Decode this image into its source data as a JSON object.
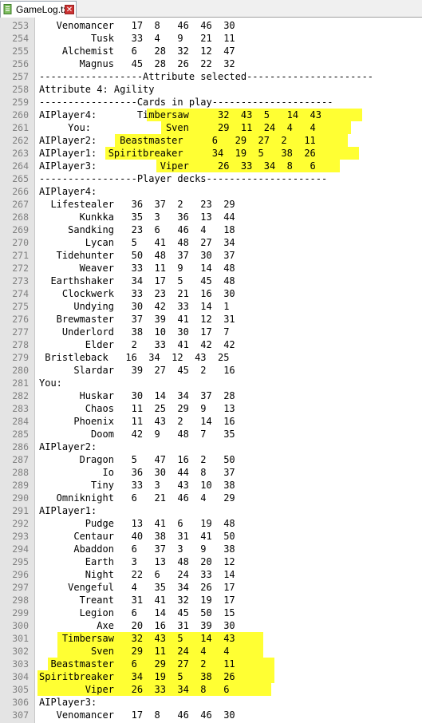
{
  "tab": {
    "title": "GameLog.txt",
    "close_glyph": "✕"
  },
  "colors": {
    "highlight": "#ffff33",
    "gutter": "#e4e4e4",
    "line_number": "#808080"
  },
  "lines": [
    {
      "n": "253",
      "t": "   Venomancer   17  8   46  46  30"
    },
    {
      "n": "254",
      "t": "         Tusk   33  4   9   21  11"
    },
    {
      "n": "255",
      "t": "    Alchemist   6   28  32  12  47"
    },
    {
      "n": "256",
      "t": "       Magnus   45  28  26  22  32"
    },
    {
      "n": "257",
      "t": "------------------Attribute selected----------------------"
    },
    {
      "n": "258",
      "t": "Attribute 4: Agility"
    },
    {
      "n": "259",
      "t": "-----------------Cards in play---------------------"
    },
    {
      "n": "260",
      "t": "AIPlayer4:       Timbersaw     32  43  5   14  43"
    },
    {
      "n": "261",
      "t": "     You:             Sven     29  11  24  4   4"
    },
    {
      "n": "262",
      "t": "AIPlayer2:    Beastmaster     6   29  27  2   11"
    },
    {
      "n": "263",
      "t": "AIPlayer1:  Spiritbreaker     34  19  5   38  26"
    },
    {
      "n": "264",
      "t": "AIPlayer3:           Viper     26  33  34  8   6"
    },
    {
      "n": "265",
      "t": "-----------------Player decks---------------------"
    },
    {
      "n": "266",
      "t": "AIPlayer4:"
    },
    {
      "n": "267",
      "t": "  Lifestealer   36  37  2   23  29"
    },
    {
      "n": "268",
      "t": "       Kunkka   35  3   36  13  44"
    },
    {
      "n": "269",
      "t": "     Sandking   23  6   46  4   18"
    },
    {
      "n": "270",
      "t": "        Lycan   5   41  48  27  34"
    },
    {
      "n": "271",
      "t": "   Tidehunter   50  48  37  30  37"
    },
    {
      "n": "272",
      "t": "       Weaver   33  11  9   14  48"
    },
    {
      "n": "273",
      "t": "  Earthshaker   34  17  5   45  48"
    },
    {
      "n": "274",
      "t": "    Clockwerk   33  23  21  16  30"
    },
    {
      "n": "275",
      "t": "      Undying   30  42  33  14  1"
    },
    {
      "n": "276",
      "t": "   Brewmaster   37  39  41  12  31"
    },
    {
      "n": "277",
      "t": "    Underlord   38  10  30  17  7"
    },
    {
      "n": "278",
      "t": "        Elder   2   33  41  42  42"
    },
    {
      "n": "279",
      "t": " Bristleback   16  34  12  43  25"
    },
    {
      "n": "280",
      "t": "      Slardar   39  27  45  2   16"
    },
    {
      "n": "281",
      "t": "You:"
    },
    {
      "n": "282",
      "t": "       Huskar   30  14  34  37  28"
    },
    {
      "n": "283",
      "t": "        Chaos   11  25  29  9   13"
    },
    {
      "n": "284",
      "t": "      Phoenix   11  43  2   14  16"
    },
    {
      "n": "285",
      "t": "         Doom   42  9   48  7   35"
    },
    {
      "n": "286",
      "t": "AIPlayer2:"
    },
    {
      "n": "287",
      "t": "       Dragon   5   47  16  2   50"
    },
    {
      "n": "288",
      "t": "           Io   36  30  44  8   37"
    },
    {
      "n": "289",
      "t": "         Tiny   33  3   43  10  38"
    },
    {
      "n": "290",
      "t": "   Omniknight   6   21  46  4   29"
    },
    {
      "n": "291",
      "t": "AIPlayer1:"
    },
    {
      "n": "292",
      "t": "        Pudge   13  41  6   19  48"
    },
    {
      "n": "293",
      "t": "      Centaur   40  38  31  41  50"
    },
    {
      "n": "294",
      "t": "      Abaddon   6   37  3   9   38"
    },
    {
      "n": "295",
      "t": "        Earth   3   13  48  20  12"
    },
    {
      "n": "296",
      "t": "        Night   22  6   24  33  14"
    },
    {
      "n": "297",
      "t": "     Vengeful   4   35  34  26  17"
    },
    {
      "n": "298",
      "t": "       Treant   31  41  32  19  17"
    },
    {
      "n": "299",
      "t": "       Legion   6   14  45  50  15"
    },
    {
      "n": "300",
      "t": "          Axe   20  16  31  39  30"
    },
    {
      "n": "301",
      "t": "    Timbersaw   32  43  5   14  43"
    },
    {
      "n": "302",
      "t": "         Sven   29  11  24  4   4"
    },
    {
      "n": "303",
      "t": "  Beastmaster   6   29  27  2   11"
    },
    {
      "n": "304",
      "t": "Spiritbreaker   34  19  5   38  26"
    },
    {
      "n": "305",
      "t": "        Viper   26  33  34  8   6"
    },
    {
      "n": "306",
      "t": "AIPlayer3:"
    },
    {
      "n": "307",
      "t": "   Venomancer   17  8   46  46  30"
    }
  ]
}
